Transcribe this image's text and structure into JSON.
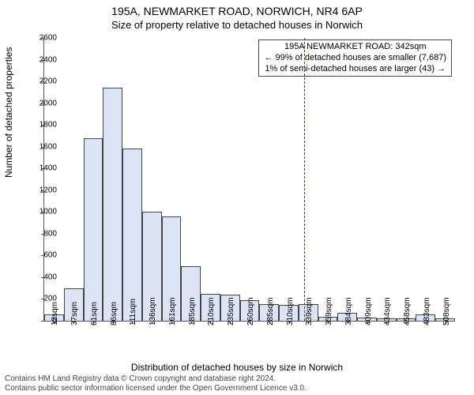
{
  "chart": {
    "type": "histogram",
    "title": "195A, NEWMARKET ROAD, NORWICH, NR4 6AP",
    "subtitle": "Size of property relative to detached houses in Norwich",
    "y_axis_label": "Number of detached properties",
    "x_axis_label": "Distribution of detached houses by size in Norwich",
    "ylim": [
      0,
      2600
    ],
    "ytick_step": 200,
    "y_ticks": [
      0,
      200,
      400,
      600,
      800,
      1000,
      1200,
      1400,
      1600,
      1800,
      2000,
      2200,
      2400,
      2600
    ],
    "x_ticks": [
      "12sqm",
      "37sqm",
      "61sqm",
      "86sqm",
      "111sqm",
      "136sqm",
      "161sqm",
      "185sqm",
      "210sqm",
      "235sqm",
      "260sqm",
      "285sqm",
      "310sqm",
      "339sqm",
      "359sqm",
      "384sqm",
      "409sqm",
      "434sqm",
      "458sqm",
      "483sqm",
      "508sqm"
    ],
    "values": [
      60,
      300,
      1680,
      2140,
      1580,
      1000,
      960,
      500,
      250,
      240,
      190,
      150,
      145,
      150,
      35,
      70,
      30,
      25,
      25,
      60,
      25
    ],
    "bar_color": "#dbe5f6",
    "bar_border_color": "#444444",
    "background_color": "#ffffff",
    "marker": {
      "position_index": 13.3,
      "color": "#cc0000",
      "annotation": {
        "line1": "195A NEWMARKET ROAD: 342sqm",
        "line2": "← 99% of detached houses are smaller (7,687)",
        "line3": "1% of semi-detached houses are larger (43) →"
      }
    },
    "attribution": {
      "line1": "Contains HM Land Registry data © Crown copyright and database right 2024.",
      "line2": "Contains public sector information licensed under the Open Government Licence v3.0."
    },
    "title_fontsize": 14,
    "label_fontsize": 12,
    "tick_fontsize": 10
  }
}
